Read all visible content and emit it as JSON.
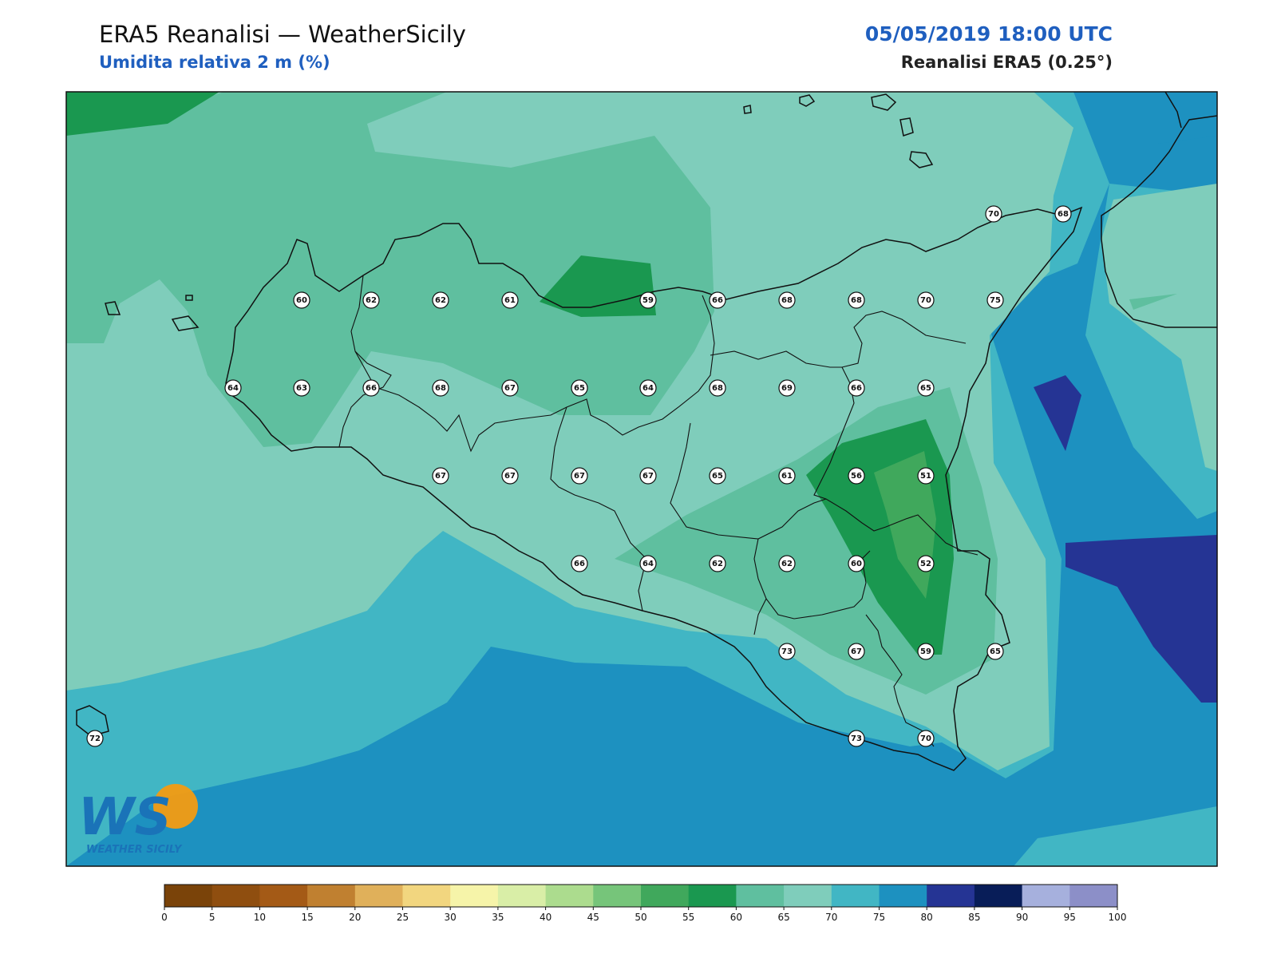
{
  "header": {
    "title": "ERA5 Reanalisi — WeatherSicily",
    "subtitle": "Umidita relativa 2 m (%)",
    "datetime": "05/05/2019 18:00 UTC",
    "source": "Reanalisi ERA5 (0.25°)"
  },
  "logo": {
    "text": "WS",
    "caption": "WEATHER SICILY"
  },
  "colorbar": {
    "ticks": [
      "0",
      "5",
      "10",
      "15",
      "20",
      "25",
      "30",
      "35",
      "40",
      "45",
      "50",
      "55",
      "60",
      "65",
      "70",
      "75",
      "80",
      "85",
      "90",
      "95",
      "100"
    ],
    "colors": [
      "#7a4309",
      "#8f4e0f",
      "#a45a16",
      "#c08030",
      "#e0b05a",
      "#f2d67f",
      "#f6f4a9",
      "#d9eea7",
      "#acdc8e",
      "#76c57a",
      "#40a85c",
      "#1a9850",
      "#5fbf9f",
      "#7fcdbb",
      "#41b6c4",
      "#1d91c0",
      "#253494",
      "#081d58",
      "#a6b0dd",
      "#8c8fc8"
    ]
  },
  "stations": [
    {
      "v": 70
    },
    {
      "v": 68
    },
    {
      "v": 60
    },
    {
      "v": 62
    },
    {
      "v": 62
    },
    {
      "v": 61
    },
    {
      "v": 59
    },
    {
      "v": 66
    },
    {
      "v": 68
    },
    {
      "v": 68
    },
    {
      "v": 70
    },
    {
      "v": 75
    },
    {
      "v": 64
    },
    {
      "v": 63
    },
    {
      "v": 66
    },
    {
      "v": 68
    },
    {
      "v": 67
    },
    {
      "v": 65
    },
    {
      "v": 64
    },
    {
      "v": 68
    },
    {
      "v": 69
    },
    {
      "v": 66
    },
    {
      "v": 65
    },
    {
      "v": 67
    },
    {
      "v": 67
    },
    {
      "v": 67
    },
    {
      "v": 67
    },
    {
      "v": 65
    },
    {
      "v": 61
    },
    {
      "v": 56
    },
    {
      "v": 51
    },
    {
      "v": 66
    },
    {
      "v": 64
    },
    {
      "v": 62
    },
    {
      "v": 62
    },
    {
      "v": 60
    },
    {
      "v": 52
    },
    {
      "v": 73
    },
    {
      "v": 67
    },
    {
      "v": 59
    },
    {
      "v": 65
    },
    {
      "v": 72
    },
    {
      "v": 73
    },
    {
      "v": 70
    }
  ]
}
